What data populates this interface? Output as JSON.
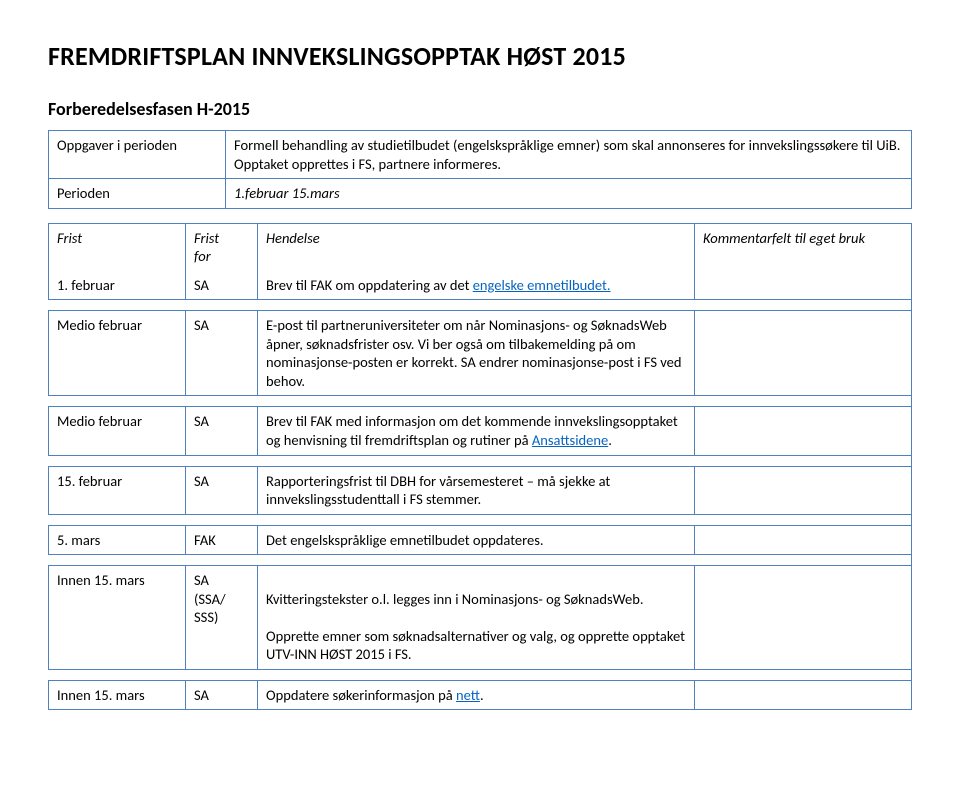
{
  "page_title": "FREMDRIFTSPLAN INNVEKSLINGSOPPTAK HØST 2015",
  "section_title": "Forberedelsesfasen H-2015",
  "intro": {
    "rows": [
      {
        "label": "Oppgaver i perioden",
        "text": "Formell behandling av studietilbudet (engelskspråklige emner) som skal annonseres for innvekslingssøkere til UiB. Opptaket opprettes i FS, partnere informeres."
      },
      {
        "label": "Perioden",
        "text": "1.februar 15.mars",
        "italic": true
      }
    ]
  },
  "header": {
    "date": "Frist",
    "actor": "Frist\nfor",
    "event": "Hendelse",
    "comment": "Kommentarfelt til eget bruk"
  },
  "rows": [
    {
      "date": "1. februar",
      "actor": "SA",
      "event_pre": "Brev til FAK om oppdatering av det ",
      "event_link": "engelske emnetilbudet.",
      "event_post": ""
    },
    {
      "date": "Medio februar",
      "actor": "SA",
      "event_pre": "E-post til partneruniversiteter om når Nominasjons- og SøknadsWeb åpner, søknadsfrister osv. Vi ber også om tilbakemelding på om nominasjonse-posten er korrekt. SA endrer nominasjonse-post i FS ved behov.",
      "event_link": "",
      "event_post": ""
    },
    {
      "date": "Medio februar",
      "actor": "SA",
      "event_pre": "Brev til FAK med informasjon om det kommende innvekslingsopptaket og henvisning til fremdriftsplan og rutiner på ",
      "event_link": "Ansattsidene",
      "event_post": "."
    },
    {
      "date": "15. februar",
      "actor": "SA",
      "event_pre": "Rapporteringsfrist til DBH for vårsemesteret – må sjekke at innvekslingsstudenttall i FS stemmer.",
      "event_link": "",
      "event_post": ""
    },
    {
      "date": " 5. mars",
      "actor": "FAK",
      "event_pre": "Det engelskspråklige emnetilbudet oppdateres.",
      "event_link": "",
      "event_post": ""
    },
    {
      "date": "Innen 15. mars",
      "actor": "SA\n(SSA/\nSSS)",
      "event_pre": "Kvitteringstekster o.l. legges inn i Nominasjons- og SøknadsWeb.\n\nOpprette emner som søknadsalternativer og valg, og opprette opptaket UTV-INN HØST 2015 i FS.",
      "event_link": "",
      "event_post": ""
    },
    {
      "date": "Innen 15. mars",
      "actor": "SA",
      "event_pre": "Oppdatere søkerinformasjon på ",
      "event_link": "nett",
      "event_post": "."
    }
  ]
}
